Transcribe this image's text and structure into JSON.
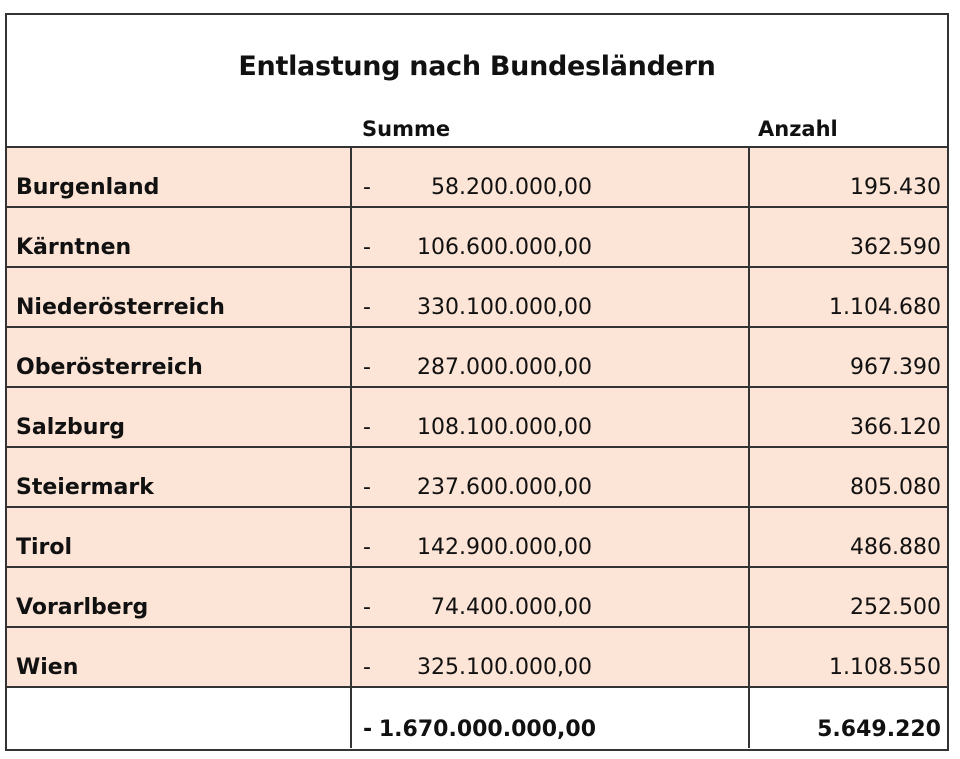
{
  "title": "Entlastung nach Bundesländern",
  "columns": {
    "name": "",
    "summe": "Summe",
    "anzahl": "Anzahl"
  },
  "rows": [
    {
      "name": "Burgenland",
      "sign": "-",
      "summe": "58.200.000,00",
      "anzahl": "195.430"
    },
    {
      "name": "Kärntnen",
      "sign": "-",
      "summe": "106.600.000,00",
      "anzahl": "362.590"
    },
    {
      "name": "Niederösterreich",
      "sign": "-",
      "summe": "330.100.000,00",
      "anzahl": "1.104.680"
    },
    {
      "name": "Oberösterreich",
      "sign": "-",
      "summe": "287.000.000,00",
      "anzahl": "967.390"
    },
    {
      "name": "Salzburg",
      "sign": "-",
      "summe": "108.100.000,00",
      "anzahl": "366.120"
    },
    {
      "name": "Steiermark",
      "sign": "-",
      "summe": "237.600.000,00",
      "anzahl": "805.080"
    },
    {
      "name": "Tirol",
      "sign": "-",
      "summe": "142.900.000,00",
      "anzahl": "486.880"
    },
    {
      "name": "Vorarlberg",
      "sign": "-",
      "summe": "74.400.000,00",
      "anzahl": "252.500"
    },
    {
      "name": "Wien",
      "sign": "-",
      "summe": "325.100.000,00",
      "anzahl": "1.108.550"
    }
  ],
  "total": {
    "name": "",
    "sign": "-",
    "summe": "1.670.000.000,00",
    "anzahl": "5.649.220"
  },
  "colors": {
    "row_fill": "#fce4d6",
    "border": "#333333",
    "background": "#ffffff"
  }
}
